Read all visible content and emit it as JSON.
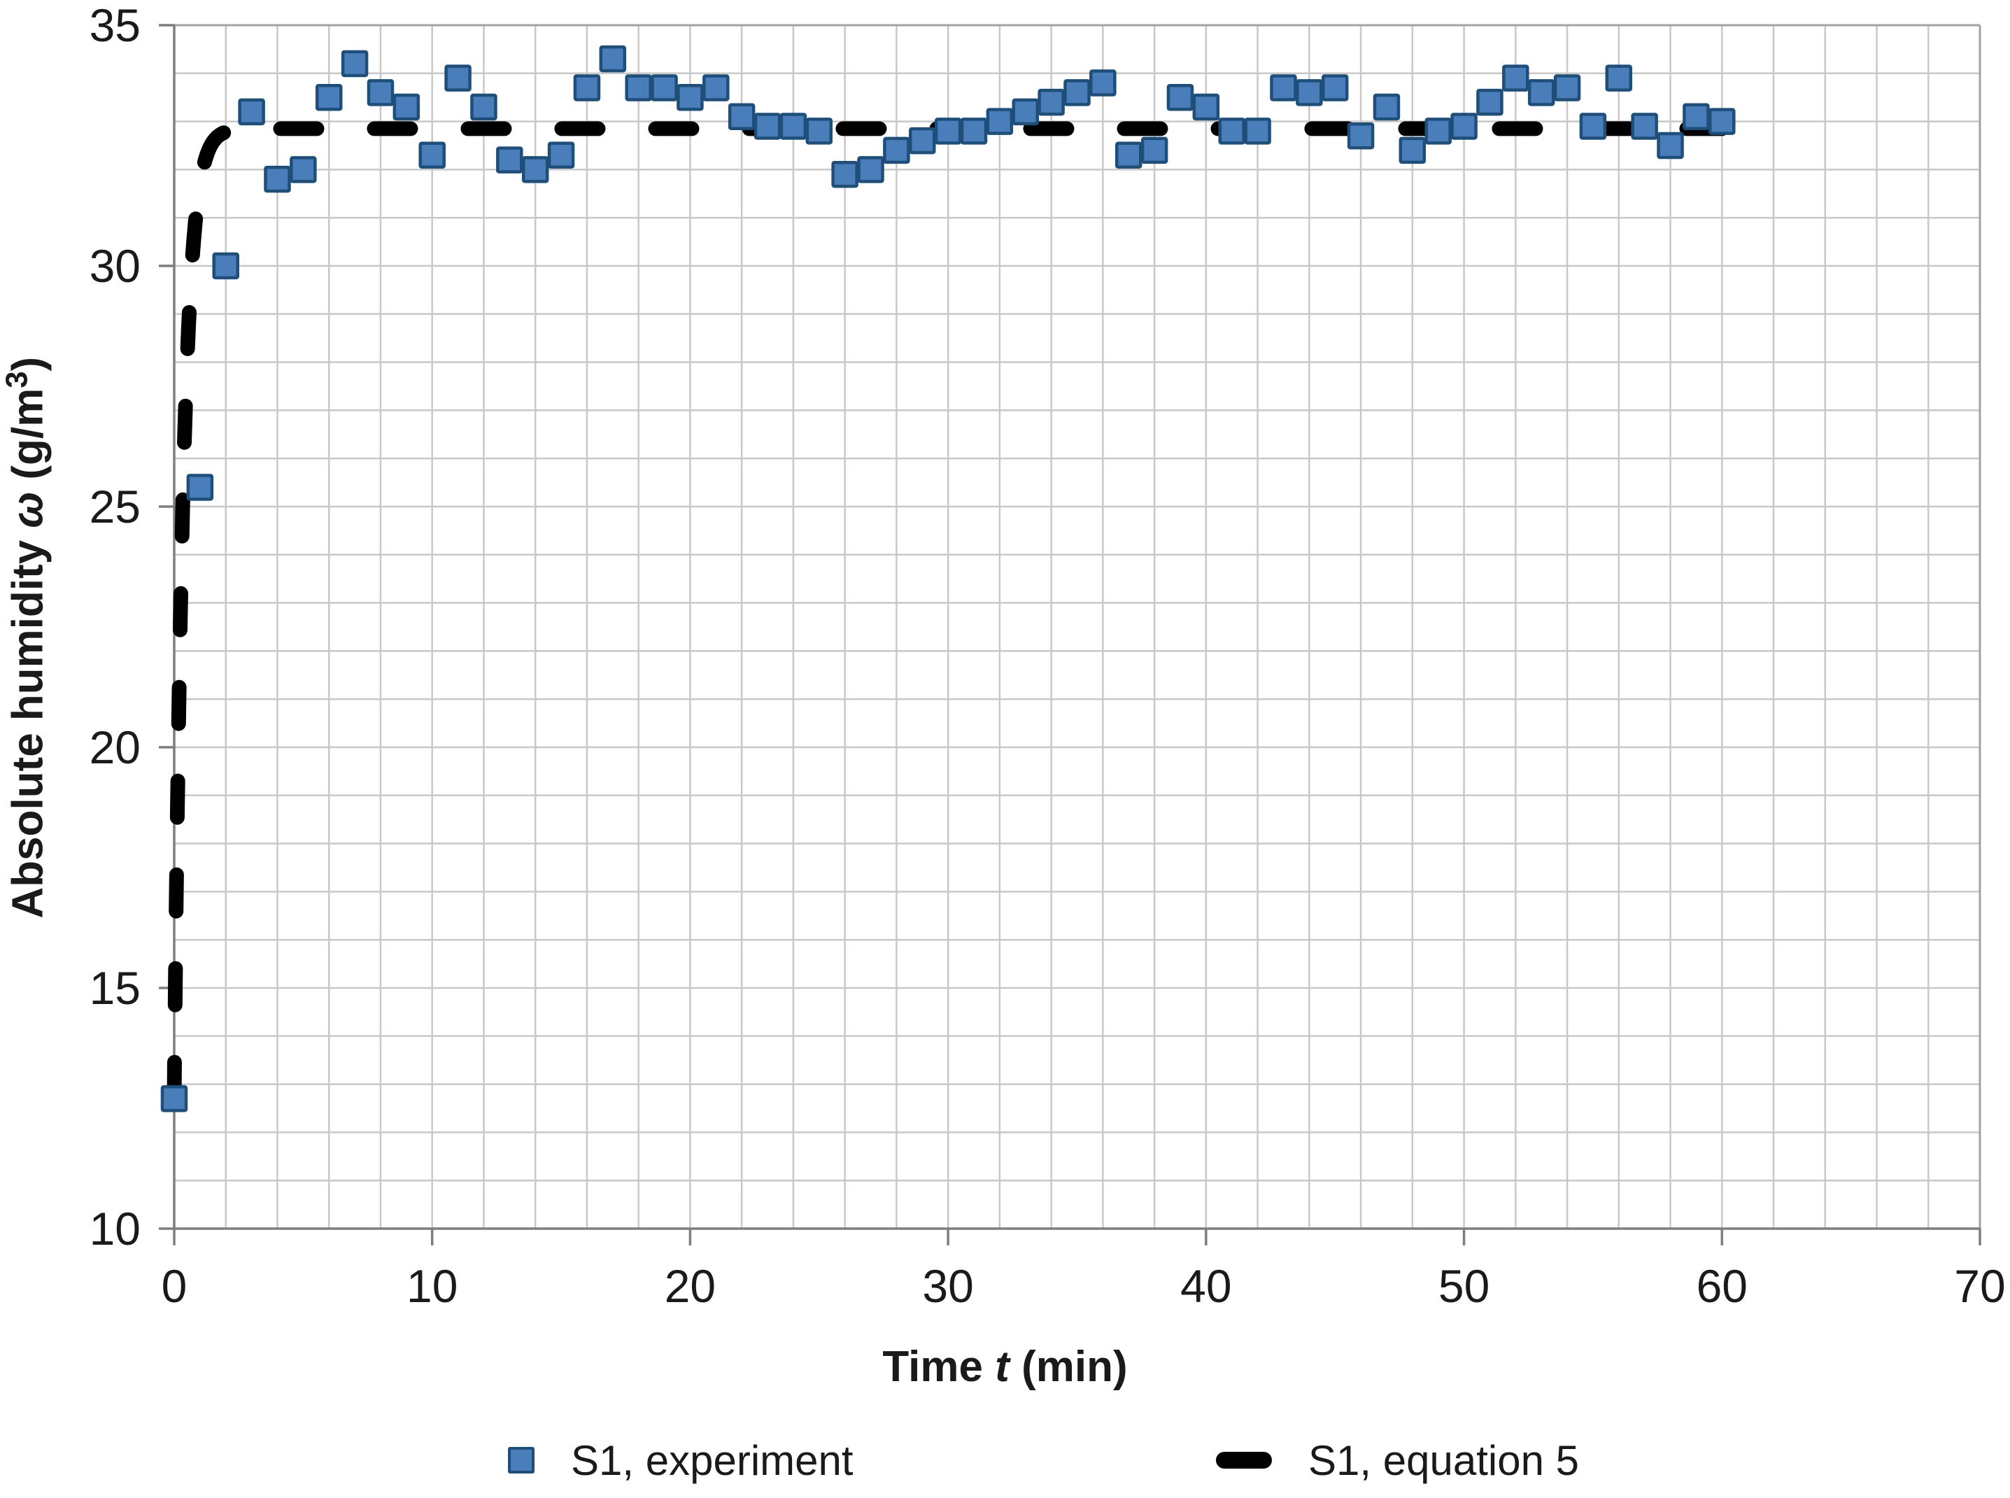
{
  "chart_data": {
    "type": "scatter",
    "title": "",
    "x_axis": {
      "label_pre": "Time ",
      "label_italic": "t",
      "label_post": " (min)",
      "min": 0,
      "max": 70,
      "major_tick_step": 10,
      "minor_grid_step": 2,
      "ticks": [
        0,
        10,
        20,
        30,
        40,
        50,
        60,
        70
      ]
    },
    "y_axis": {
      "label_pre": "Absolute humidity ",
      "label_italic": "ω",
      "label_post": " (g/m",
      "label_sup": "3",
      "label_end": ")",
      "min": 10,
      "max": 35,
      "major_tick_step": 5,
      "minor_grid_step": 1,
      "ticks": [
        10,
        15,
        20,
        25,
        30,
        35
      ]
    },
    "grid": {
      "on": true,
      "color": "#c8c8c8",
      "border_color": "#a3a3a3",
      "axis_color": "#7f7f7f"
    },
    "legend": {
      "position": "bottom"
    },
    "series": [
      {
        "name": "S1, experiment",
        "type": "scatter",
        "marker": "square",
        "marker_fill": "#4a7ebb",
        "marker_border": "#1f4e79",
        "t": [
          0,
          1,
          2,
          3,
          4,
          5,
          6,
          7,
          8,
          9,
          10,
          11,
          12,
          13,
          14,
          15,
          16,
          17,
          18,
          19,
          20,
          21,
          22,
          23,
          24,
          25,
          26,
          27,
          28,
          29,
          30,
          31,
          32,
          33,
          34,
          35,
          36,
          37,
          38,
          39,
          40,
          41,
          42,
          43,
          44,
          45,
          46,
          47,
          48,
          49,
          50,
          51,
          52,
          53,
          54,
          55,
          56,
          57,
          58,
          59,
          60
        ],
        "omega": [
          12.7,
          25.4,
          30.0,
          33.2,
          31.8,
          32.0,
          33.5,
          34.2,
          33.6,
          33.3,
          32.3,
          33.9,
          33.3,
          32.2,
          32.0,
          32.3,
          33.7,
          34.3,
          33.7,
          33.7,
          33.5,
          33.7,
          33.1,
          32.9,
          32.9,
          32.8,
          31.9,
          32.0,
          32.4,
          32.6,
          32.8,
          32.8,
          33.0,
          33.2,
          33.4,
          33.6,
          33.8,
          32.3,
          32.4,
          33.5,
          33.3,
          32.8,
          32.8,
          33.7,
          33.6,
          33.7,
          32.7,
          33.3,
          32.4,
          32.8,
          32.9,
          33.4,
          33.9,
          33.6,
          33.7,
          32.9,
          33.9,
          32.9,
          32.5,
          33.1,
          33.0
        ]
      },
      {
        "name": "S1, equation 5",
        "type": "line",
        "style": "dashed",
        "color": "#000000",
        "equation": {
          "form": "omega_inf - (omega_inf - omega_0) * exp(-t/tau)",
          "omega_inf": 32.85,
          "omega_0": 12.7,
          "tau_min": 0.35,
          "t_start": 0,
          "t_end": 60
        }
      }
    ]
  }
}
